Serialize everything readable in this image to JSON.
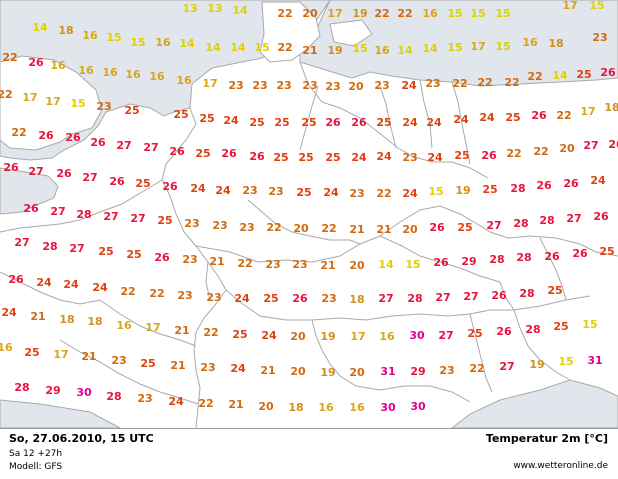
{
  "map": {
    "colors": {
      "water": "#e1e5ec",
      "land": "#ffffff",
      "border": "#a9a9a9",
      "t14": "#e0d000",
      "t16": "#d8a418",
      "t18": "#d09020",
      "t20": "#d06a10",
      "t24": "#e04010",
      "t26": "#e8143c",
      "t30": "#e00090"
    },
    "temps": [
      "22",
      "20",
      "17",
      "19",
      "22",
      "22",
      "16",
      "15",
      "15",
      "15",
      "17",
      "15",
      "13",
      "13",
      "14",
      "14",
      "18",
      "16",
      "15",
      "15",
      "16",
      "14",
      "14",
      "14",
      "15",
      "22",
      "21",
      "19",
      "15",
      "16",
      "14",
      "14",
      "15",
      "17",
      "15",
      "16",
      "18",
      "23",
      "22",
      "26",
      "16",
      "16",
      "16",
      "16",
      "16",
      "16",
      "17",
      "23",
      "23",
      "23",
      "23",
      "23",
      "20",
      "23",
      "24",
      "23",
      "22",
      "22",
      "22",
      "22",
      "14",
      "25",
      "26",
      "22",
      "17",
      "17",
      "15",
      "23",
      "25",
      "25",
      "25",
      "24",
      "25",
      "25",
      "25",
      "26",
      "26",
      "25",
      "24",
      "24",
      "24",
      "24",
      "25",
      "26",
      "22",
      "17",
      "18",
      "22",
      "26",
      "26",
      "26",
      "27",
      "27",
      "26",
      "25",
      "26",
      "26",
      "25",
      "25",
      "25",
      "24",
      "24",
      "23",
      "24",
      "25",
      "26",
      "22",
      "22",
      "20",
      "27",
      "26",
      "26",
      "27",
      "26",
      "27",
      "26",
      "25",
      "26",
      "24",
      "24",
      "23",
      "23",
      "25",
      "24",
      "23",
      "22",
      "24",
      "15",
      "19",
      "25",
      "28",
      "26",
      "26",
      "24",
      "26",
      "27",
      "28",
      "27",
      "27",
      "25",
      "23",
      "23",
      "23",
      "22",
      "20",
      "22",
      "21",
      "21",
      "20",
      "26",
      "25",
      "27",
      "28",
      "28",
      "27",
      "26",
      "27",
      "28",
      "27",
      "25",
      "25",
      "26",
      "23",
      "21",
      "22",
      "23",
      "23",
      "21",
      "20",
      "14",
      "15",
      "26",
      "29",
      "28",
      "28",
      "26",
      "26",
      "25",
      "26",
      "24",
      "24",
      "24",
      "22",
      "22",
      "23",
      "23",
      "24",
      "25",
      "26",
      "23",
      "18",
      "27",
      "28",
      "27",
      "27",
      "26",
      "28",
      "25",
      "24",
      "21",
      "18",
      "18",
      "16",
      "17",
      "21",
      "22",
      "25",
      "24",
      "20",
      "19",
      "17",
      "16",
      "30",
      "27",
      "25",
      "26",
      "28",
      "25",
      "15",
      "16",
      "25",
      "17",
      "21",
      "23",
      "25",
      "21",
      "23",
      "24",
      "21",
      "20",
      "19",
      "20",
      "31",
      "29",
      "23",
      "22",
      "27",
      "19",
      "15",
      "31",
      "28",
      "29",
      "30",
      "28",
      "23",
      "24",
      "22",
      "21",
      "20",
      "18",
      "16",
      "16",
      "30",
      "30"
    ]
  },
  "footer": {
    "datetime": "So, 27.06.2010, 15 UTC",
    "run": "Sa 12 +27h",
    "model": "Modell: GFS",
    "title": "Temperatur  2m [°C]",
    "source": "www.wetteronline.de"
  }
}
